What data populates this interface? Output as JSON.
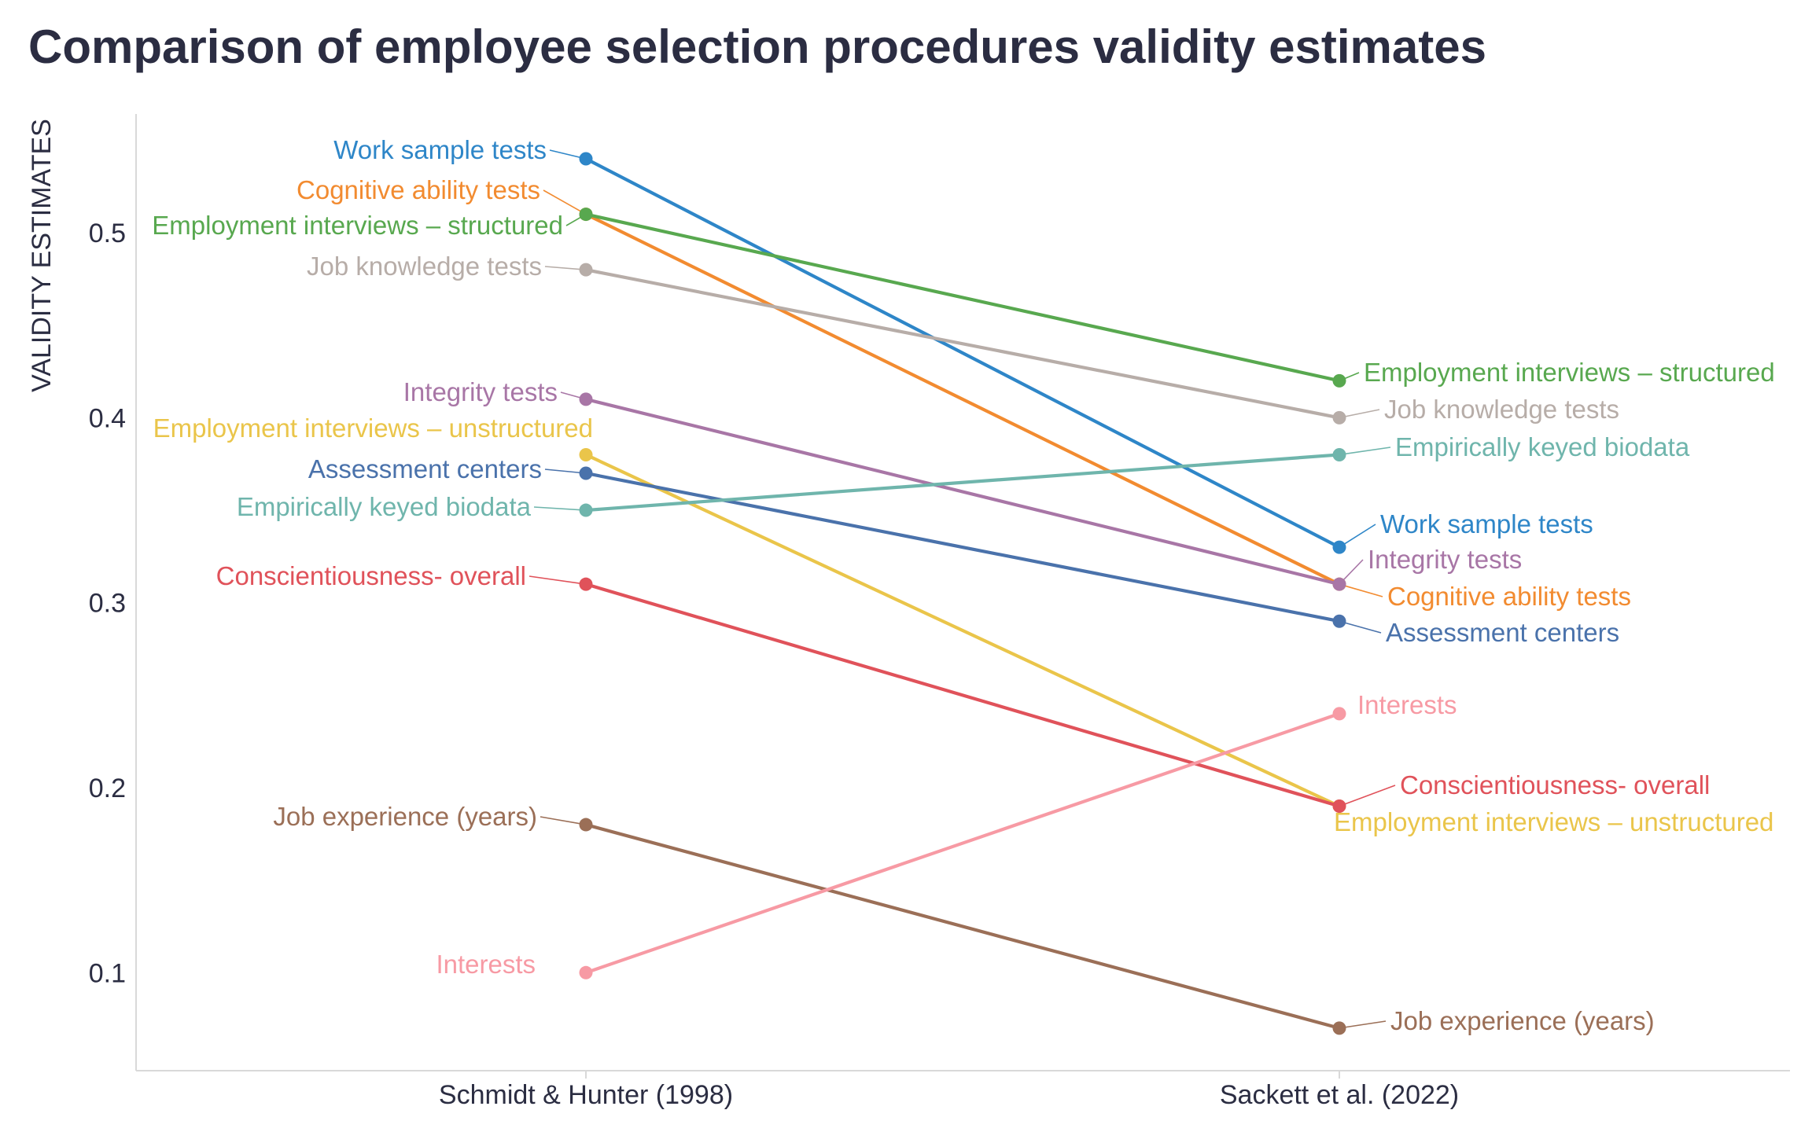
{
  "chart_data": {
    "type": "line",
    "title": "Comparison of employee selection procedures validity estimates",
    "ylabel": "VALIDITY ESTIMATES",
    "xlabel": "",
    "categories": [
      "Schmidt & Hunter (1998)",
      "Sackett et al. (2022)"
    ],
    "ylim": [
      0.05,
      0.57
    ],
    "yticks": [
      0.1,
      0.2,
      0.3,
      0.4,
      0.5
    ],
    "grid": false,
    "legend": "none (direct labels at both ends of each line)",
    "series": [
      {
        "name": "Work sample tests",
        "values": [
          0.54,
          0.33
        ],
        "color": "#2e86c8"
      },
      {
        "name": "Cognitive ability tests",
        "values": [
          0.51,
          0.31
        ],
        "color": "#f28b30"
      },
      {
        "name": "Employment interviews – structured",
        "values": [
          0.51,
          0.42
        ],
        "color": "#58a84f"
      },
      {
        "name": "Job knowledge tests",
        "values": [
          0.48,
          0.4
        ],
        "color": "#b7ada8"
      },
      {
        "name": "Integrity tests",
        "values": [
          0.41,
          0.31
        ],
        "color": "#a876a6"
      },
      {
        "name": "Employment interviews – unstructured",
        "values": [
          0.38,
          0.19
        ],
        "color": "#eac54a"
      },
      {
        "name": "Assessment centers",
        "values": [
          0.37,
          0.29
        ],
        "color": "#4a72ab"
      },
      {
        "name": "Empirically keyed biodata",
        "values": [
          0.35,
          0.38
        ],
        "color": "#6fb5ac"
      },
      {
        "name": "Conscientiousness- overall",
        "values": [
          0.31,
          0.19
        ],
        "color": "#e0525a"
      },
      {
        "name": "Job experience (years)",
        "values": [
          0.18,
          0.07
        ],
        "color": "#9b6f57"
      },
      {
        "name": "Interests",
        "values": [
          0.1,
          0.24
        ],
        "color": "#f79aa4"
      }
    ]
  }
}
